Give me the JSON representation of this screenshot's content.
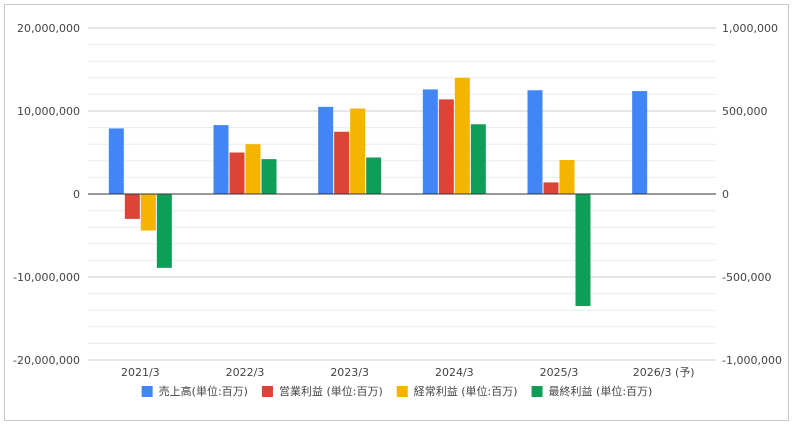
{
  "chart_data": {
    "type": "bar",
    "categories": [
      "2021/3",
      "2022/3",
      "2023/3",
      "2024/3",
      "2025/3",
      "2026/3 (予)"
    ],
    "series": [
      {
        "name": "売上高(単位:百万)",
        "axis": "left",
        "color": "#4285f4",
        "values": [
          7900000,
          8300000,
          10500000,
          12600000,
          12500000,
          12400000
        ]
      },
      {
        "name": "営業利益 (単位:百万)",
        "axis": "right",
        "color": "#db4437",
        "values": [
          -150000,
          250000,
          375000,
          570000,
          70000,
          null
        ]
      },
      {
        "name": "経常利益 (単位:百万)",
        "axis": "right",
        "color": "#f4b400",
        "values": [
          -220000,
          300000,
          515000,
          700000,
          205000,
          null
        ]
      },
      {
        "name": "最終利益 (単位:百万)",
        "axis": "right",
        "color": "#0f9d58",
        "values": [
          -445000,
          210000,
          220000,
          420000,
          -675000,
          null
        ]
      }
    ],
    "y_left": {
      "ylim": [
        -20000000,
        20000000
      ],
      "ticks": [
        20000000,
        10000000,
        0,
        -10000000,
        -20000000
      ],
      "tick_labels": [
        "20,000,000",
        "10,000,000",
        "0",
        "-10,000,000",
        "-20,000,000"
      ]
    },
    "y_right": {
      "ylim": [
        -1000000,
        1000000
      ],
      "ticks": [
        1000000,
        500000,
        0,
        -500000,
        -1000000
      ],
      "tick_labels": [
        "1,000,000",
        "500,000",
        "0",
        "-500,000",
        "-1,000,000"
      ]
    },
    "grid": true,
    "minor_gridlines": 4,
    "legend_position": "bottom"
  }
}
